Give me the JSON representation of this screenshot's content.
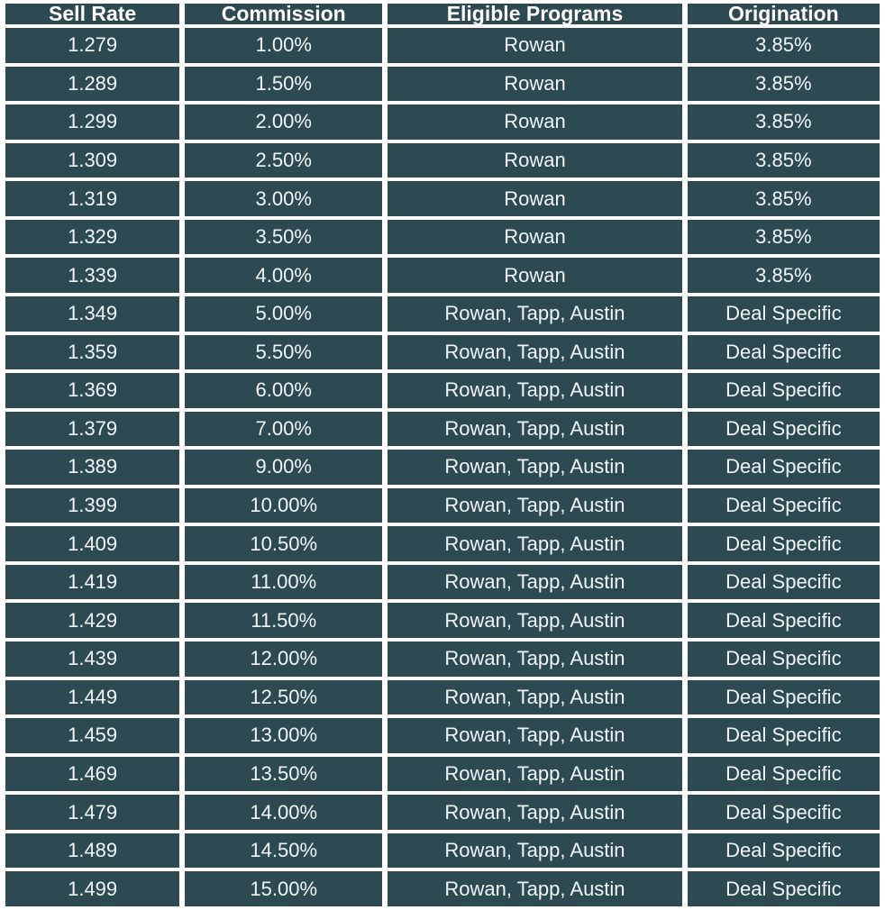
{
  "chart_data": {
    "type": "table",
    "columns": [
      "Sell Rate",
      "Commission",
      "Eligible Programs",
      "Origination"
    ],
    "rows": [
      [
        "1.279",
        "1.00%",
        "Rowan",
        "3.85%"
      ],
      [
        "1.289",
        "1.50%",
        "Rowan",
        "3.85%"
      ],
      [
        "1.299",
        "2.00%",
        "Rowan",
        "3.85%"
      ],
      [
        "1.309",
        "2.50%",
        "Rowan",
        "3.85%"
      ],
      [
        "1.319",
        "3.00%",
        "Rowan",
        "3.85%"
      ],
      [
        "1.329",
        "3.50%",
        "Rowan",
        "3.85%"
      ],
      [
        "1.339",
        "4.00%",
        "Rowan",
        "3.85%"
      ],
      [
        "1.349",
        "5.00%",
        "Rowan, Tapp, Austin",
        "Deal Specific"
      ],
      [
        "1.359",
        "5.50%",
        "Rowan, Tapp, Austin",
        "Deal Specific"
      ],
      [
        "1.369",
        "6.00%",
        "Rowan, Tapp, Austin",
        "Deal Specific"
      ],
      [
        "1.379",
        "7.00%",
        "Rowan, Tapp, Austin",
        "Deal Specific"
      ],
      [
        "1.389",
        "9.00%",
        "Rowan, Tapp, Austin",
        "Deal Specific"
      ],
      [
        "1.399",
        "10.00%",
        "Rowan, Tapp, Austin",
        "Deal Specific"
      ],
      [
        "1.409",
        "10.50%",
        "Rowan, Tapp, Austin",
        "Deal Specific"
      ],
      [
        "1.419",
        "11.00%",
        "Rowan, Tapp, Austin",
        "Deal Specific"
      ],
      [
        "1.429",
        "11.50%",
        "Rowan, Tapp, Austin",
        "Deal Specific"
      ],
      [
        "1.439",
        "12.00%",
        "Rowan, Tapp, Austin",
        "Deal Specific"
      ],
      [
        "1.449",
        "12.50%",
        "Rowan, Tapp, Austin",
        "Deal Specific"
      ],
      [
        "1.459",
        "13.00%",
        "Rowan, Tapp, Austin",
        "Deal Specific"
      ],
      [
        "1.469",
        "13.50%",
        "Rowan, Tapp, Austin",
        "Deal Specific"
      ],
      [
        "1.479",
        "14.00%",
        "Rowan, Tapp, Austin",
        "Deal Specific"
      ],
      [
        "1.489",
        "14.50%",
        "Rowan, Tapp, Austin",
        "Deal Specific"
      ],
      [
        "1.499",
        "15.00%",
        "Rowan, Tapp, Austin",
        "Deal Specific"
      ]
    ]
  },
  "colors": {
    "cell_bg": "#2d4951",
    "grid_border": "#ffffff",
    "cell_text": "#eff7f8",
    "header_text": "#ffffff"
  }
}
